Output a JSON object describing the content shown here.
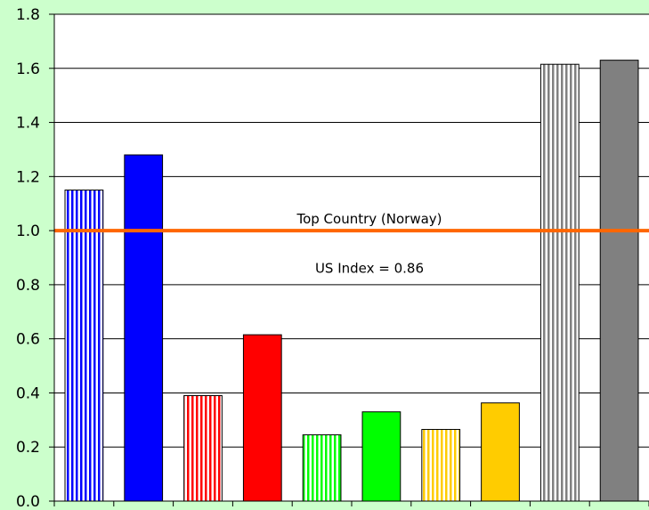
{
  "chart_data": {
    "type": "bar",
    "title": "",
    "xlabel": "",
    "ylabel": "",
    "ylim": [
      0,
      1.8
    ],
    "yticks": [
      "0.0",
      "0.2",
      "0.4",
      "0.6",
      "0.8",
      "1.0",
      "1.2",
      "1.4",
      "1.6",
      "1.8"
    ],
    "grid": true,
    "legend": "none",
    "bars": [
      {
        "value": 1.15,
        "color": "#0000ff",
        "fill": "striped"
      },
      {
        "value": 1.28,
        "color": "#0000ff",
        "fill": "solid"
      },
      {
        "value": 0.39,
        "color": "#ff0000",
        "fill": "striped"
      },
      {
        "value": 0.615,
        "color": "#ff0000",
        "fill": "solid"
      },
      {
        "value": 0.245,
        "color": "#00ff00",
        "fill": "striped"
      },
      {
        "value": 0.33,
        "color": "#00ff00",
        "fill": "solid"
      },
      {
        "value": 0.265,
        "color": "#ffcc00",
        "fill": "striped"
      },
      {
        "value": 0.363,
        "color": "#ffcc00",
        "fill": "solid"
      },
      {
        "value": 1.615,
        "color": "#808080",
        "fill": "striped"
      },
      {
        "value": 1.63,
        "color": "#808080",
        "fill": "solid"
      }
    ],
    "reference_line": {
      "value": 1.0,
      "color": "#ff6600",
      "label": "Top Country (Norway)"
    },
    "annotation": "US Index = 0.86",
    "colors": {
      "background": "#ccffcc",
      "plot_area": "#ffffff",
      "gridline": "#000000"
    }
  }
}
